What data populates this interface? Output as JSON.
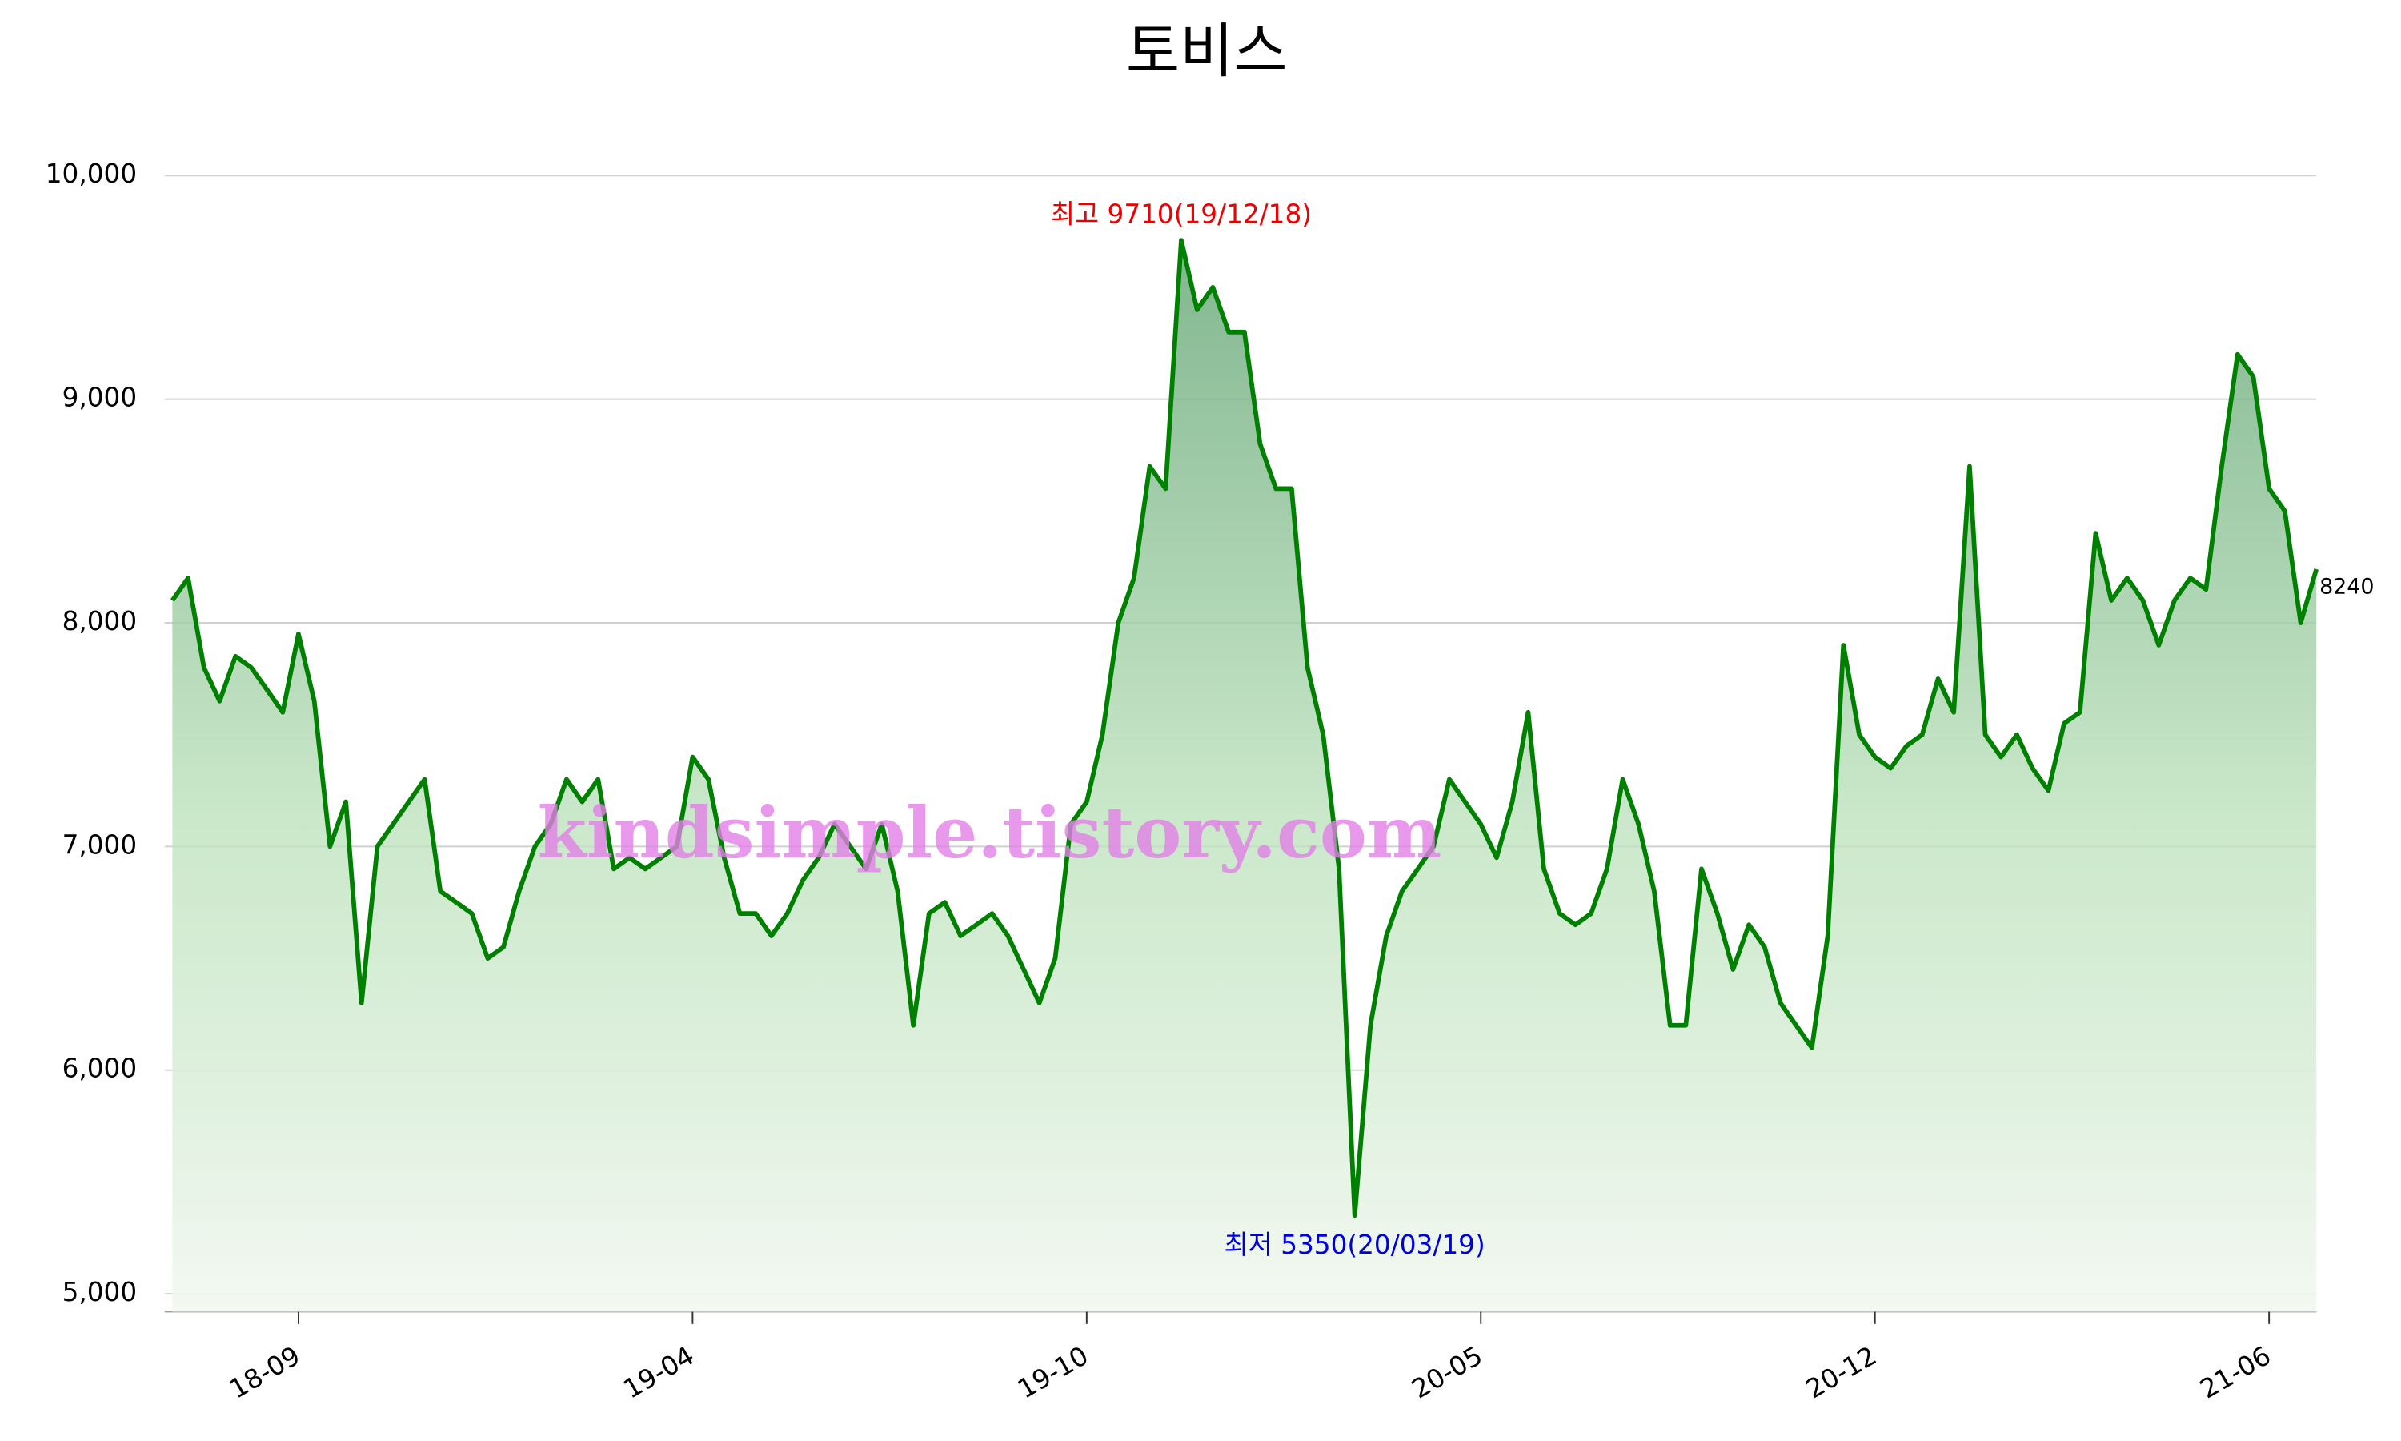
{
  "chart_data": {
    "type": "line",
    "title": "토비스",
    "watermark": "kindsimple.tistory.com",
    "annotations": [
      {
        "text": "최고 9710(19/12/18)",
        "color": "#ee0000",
        "kind": "max"
      },
      {
        "text": "최저 5350(20/03/19)",
        "color": "#0000dd",
        "kind": "min"
      }
    ],
    "categories": [
      null,
      null,
      null,
      null,
      null,
      null,
      null,
      null,
      "18-09",
      null,
      null,
      null,
      null,
      null,
      null,
      null,
      null,
      null,
      null,
      null,
      null,
      null,
      null,
      null,
      null,
      null,
      null,
      null,
      null,
      null,
      null,
      null,
      null,
      "19-04",
      null,
      null,
      null,
      null,
      null,
      null,
      null,
      null,
      null,
      null,
      null,
      null,
      null,
      null,
      null,
      null,
      null,
      null,
      null,
      null,
      null,
      null,
      null,
      null,
      "19-10",
      null,
      null,
      null,
      null,
      null,
      null,
      null,
      null,
      null,
      null,
      null,
      null,
      null,
      null,
      null,
      null,
      null,
      null,
      null,
      null,
      null,
      null,
      null,
      null,
      "20-05",
      null,
      null,
      null,
      null,
      null,
      null,
      null,
      null,
      null,
      null,
      null,
      null,
      null,
      null,
      null,
      null,
      null,
      null,
      null,
      null,
      null,
      null,
      null,
      null,
      "20-12",
      null,
      null,
      null,
      null,
      null,
      null,
      null,
      null,
      null,
      null,
      null,
      null,
      null,
      null,
      null,
      null,
      null,
      null,
      null,
      null,
      null,
      null,
      null,
      null,
      "21-06",
      null,
      null,
      null
    ],
    "series": [
      {
        "name": "토비스",
        "color": "#008000",
        "values": [
          8100,
          8200,
          7800,
          7650,
          7850,
          7800,
          7700,
          7600,
          7950,
          7650,
          7000,
          7200,
          6300,
          7000,
          7100,
          7200,
          7300,
          6800,
          6750,
          6700,
          6500,
          6550,
          6800,
          7000,
          7100,
          7300,
          7200,
          7300,
          6900,
          6950,
          6900,
          6950,
          7000,
          7400,
          7300,
          6950,
          6700,
          6700,
          6600,
          6700,
          6850,
          6950,
          7100,
          7000,
          6900,
          7100,
          6800,
          6200,
          6700,
          6750,
          6600,
          6650,
          6700,
          6600,
          6450,
          6300,
          6500,
          7100,
          7200,
          7500,
          8000,
          8200,
          8700,
          8600,
          9710,
          9400,
          9500,
          9300,
          9300,
          8800,
          8600,
          8600,
          7800,
          7500,
          6900,
          5350,
          6200,
          6600,
          6800,
          6900,
          7000,
          7300,
          7200,
          7100,
          6950,
          7200,
          7600,
          6900,
          6700,
          6650,
          6700,
          6900,
          7300,
          7100,
          6800,
          6200,
          6200,
          6900,
          6700,
          6450,
          6650,
          6550,
          6300,
          6200,
          6100,
          6600,
          7900,
          7500,
          7400,
          7350,
          7450,
          7500,
          7750,
          7600,
          8700,
          7500,
          7400,
          7500,
          7350,
          7250,
          7550,
          7600,
          8400,
          8100,
          8200,
          8100,
          7900,
          8100,
          8200,
          8150,
          8700,
          9200,
          9100,
          8600,
          8500,
          8000,
          8240
        ]
      }
    ],
    "ylim": [
      4920,
      10000
    ],
    "yticks": [
      {
        "value": 5000,
        "label": "5,000"
      },
      {
        "value": 6000,
        "label": "6,000"
      },
      {
        "value": 7000,
        "label": "7,000"
      },
      {
        "value": 8000,
        "label": "8,000"
      },
      {
        "value": 9000,
        "label": "9,000"
      },
      {
        "value": 10000,
        "label": "10,000"
      }
    ],
    "grid": true
  }
}
